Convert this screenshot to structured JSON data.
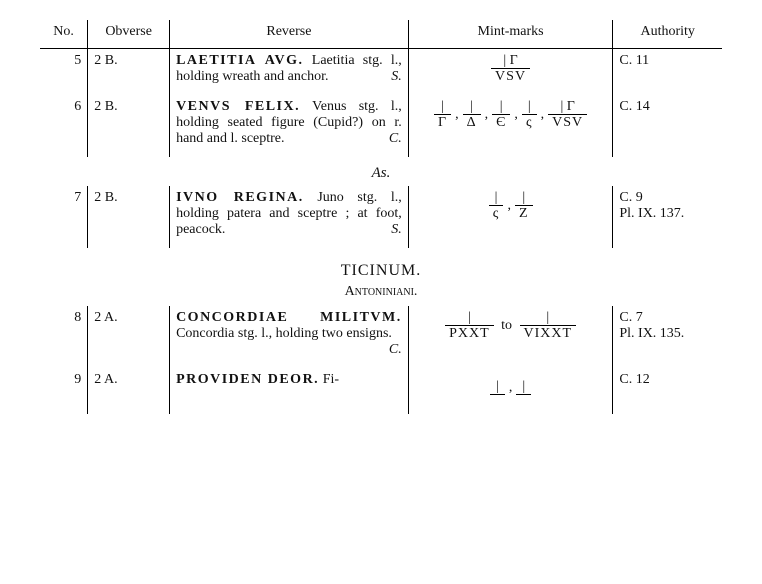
{
  "headers": {
    "no": "No.",
    "obverse": "Obverse",
    "reverse": "Reverse",
    "mintmarks": "Mint-marks",
    "authority": "Authority"
  },
  "sections": {
    "as": "As.",
    "ticinum": "TICINUM.",
    "antoniniani": "Antoniniani."
  },
  "rows": [
    {
      "no": "5",
      "obverse": "2 B.",
      "reverse_bold": "LAETITIA AVG.",
      "reverse_rest": " Laetitia stg. l., holding wreath and anchor.",
      "signature": "S.",
      "mint": [
        {
          "top": "| Γ",
          "bot": "VSV"
        }
      ],
      "authority": "C. 11"
    },
    {
      "no": "6",
      "obverse": "2 B.",
      "reverse_bold": "VENVS FELIX.",
      "reverse_rest": " Venus stg. l., holding seated figure (Cupid?) on r. hand and l. sceptre.",
      "signature": "C.",
      "mint": [
        {
          "top": "|",
          "bot": "Γ"
        },
        {
          "sep": ","
        },
        {
          "top": "|",
          "bot": "Δ"
        },
        {
          "sep": ","
        },
        {
          "top": "|",
          "bot": "Є"
        },
        {
          "sep": ","
        },
        {
          "top": "|",
          "bot": "ς"
        },
        {
          "sep": ","
        },
        {
          "top": "| Γ",
          "bot": "VSV"
        }
      ],
      "authority": "C. 14"
    },
    {
      "no": "7",
      "obverse": "2 B.",
      "reverse_bold": "IVNO REGINA.",
      "reverse_rest": " Juno stg. l., holding patera and sceptre ; at foot, peacock.",
      "signature": "S.",
      "mint": [
        {
          "top": "|",
          "bot": "ς"
        },
        {
          "sep": ","
        },
        {
          "top": "|",
          "bot": "Z"
        }
      ],
      "authority": "C. 9\nPl. IX. 137."
    },
    {
      "no": "8",
      "obverse": "2 A.",
      "reverse_bold": "CONCORDIAE MILITVM.",
      "reverse_rest": " Concordia stg. l., holding two ensigns.",
      "signature": "C.",
      "mint": [
        {
          "top": "|",
          "bot": "PXXT"
        },
        {
          "sep": " to "
        },
        {
          "top": "|",
          "bot": "VIXXT"
        }
      ],
      "authority": "C. 7\nPl. IX. 135."
    },
    {
      "no": "9",
      "obverse": "2 A.",
      "reverse_bold": "PROVIDEN DEOR.",
      "reverse_rest": " Fi-",
      "signature": "",
      "mint": [
        {
          "top": "|",
          "bot": " "
        },
        {
          "sep": ","
        },
        {
          "top": "|",
          "bot": " "
        }
      ],
      "authority": "C. 12"
    }
  ]
}
